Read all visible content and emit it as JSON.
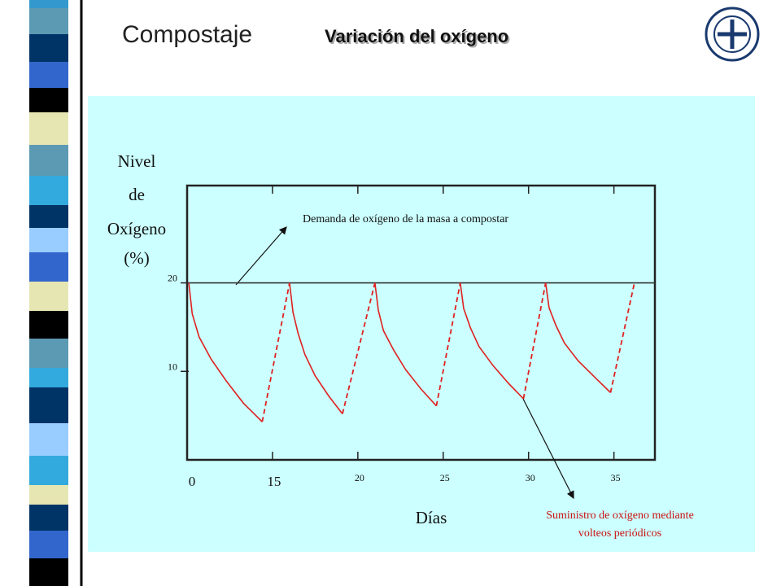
{
  "header": {
    "title": "Compostaje",
    "subtitle": "Variación del oxígeno"
  },
  "chart_data": {
    "type": "line",
    "y_label": [
      "Nivel",
      "de",
      "Oxígeno",
      "(%)"
    ],
    "x_label": "Días",
    "annotations": {
      "demand": "Demanda de oxígeno de la masa a compostar",
      "supply": [
        "Suministro de oxígeno mediante",
        "volteos periódicos"
      ]
    },
    "xlim": [
      10,
      37.4
    ],
    "xticks": [
      {
        "value": 10,
        "label": "0"
      },
      15,
      20,
      25,
      30,
      35
    ],
    "ylim": [
      0,
      31
    ],
    "yticks": [
      10,
      20
    ],
    "series": [
      {
        "color": "#333333",
        "dash": false,
        "x": [
          10,
          37.4
        ],
        "values": [
          20,
          20
        ]
      },
      {
        "color": "#e02020",
        "dash": false,
        "x": [
          10.1,
          10.3,
          10.7,
          11.4,
          12.3,
          13.3,
          14.4,
          null,
          16.0,
          16.2,
          16.5,
          16.9,
          17.5,
          18.3,
          19.1,
          null,
          21.0,
          21.2,
          21.5,
          22.1,
          22.8,
          23.7,
          24.6,
          null,
          26.0,
          26.2,
          26.6,
          27.1,
          27.9,
          28.8,
          29.7,
          null,
          31.0,
          31.2,
          31.6,
          32.1,
          32.9,
          33.9,
          34.8
        ],
        "values": [
          20,
          16.5,
          13.9,
          11.4,
          8.9,
          6.4,
          4.3,
          null,
          20,
          16.7,
          14.3,
          11.9,
          9.5,
          7.2,
          5.2,
          null,
          20,
          16.9,
          14.6,
          12.4,
          10.2,
          8.0,
          6.1,
          null,
          20,
          17.1,
          14.9,
          12.8,
          10.7,
          8.7,
          6.9,
          null,
          20,
          17.2,
          15.2,
          13.2,
          11.2,
          9.3,
          7.6
        ]
      },
      {
        "color": "#e02020",
        "dash": true,
        "x": [
          14.4,
          16.0,
          null,
          19.1,
          21.0,
          null,
          24.6,
          26.0,
          null,
          29.7,
          31.0,
          null,
          34.8,
          36.2
        ],
        "values": [
          4.3,
          20,
          null,
          5.2,
          20,
          null,
          6.1,
          20,
          null,
          6.9,
          20,
          null,
          7.6,
          20
        ]
      }
    ]
  }
}
